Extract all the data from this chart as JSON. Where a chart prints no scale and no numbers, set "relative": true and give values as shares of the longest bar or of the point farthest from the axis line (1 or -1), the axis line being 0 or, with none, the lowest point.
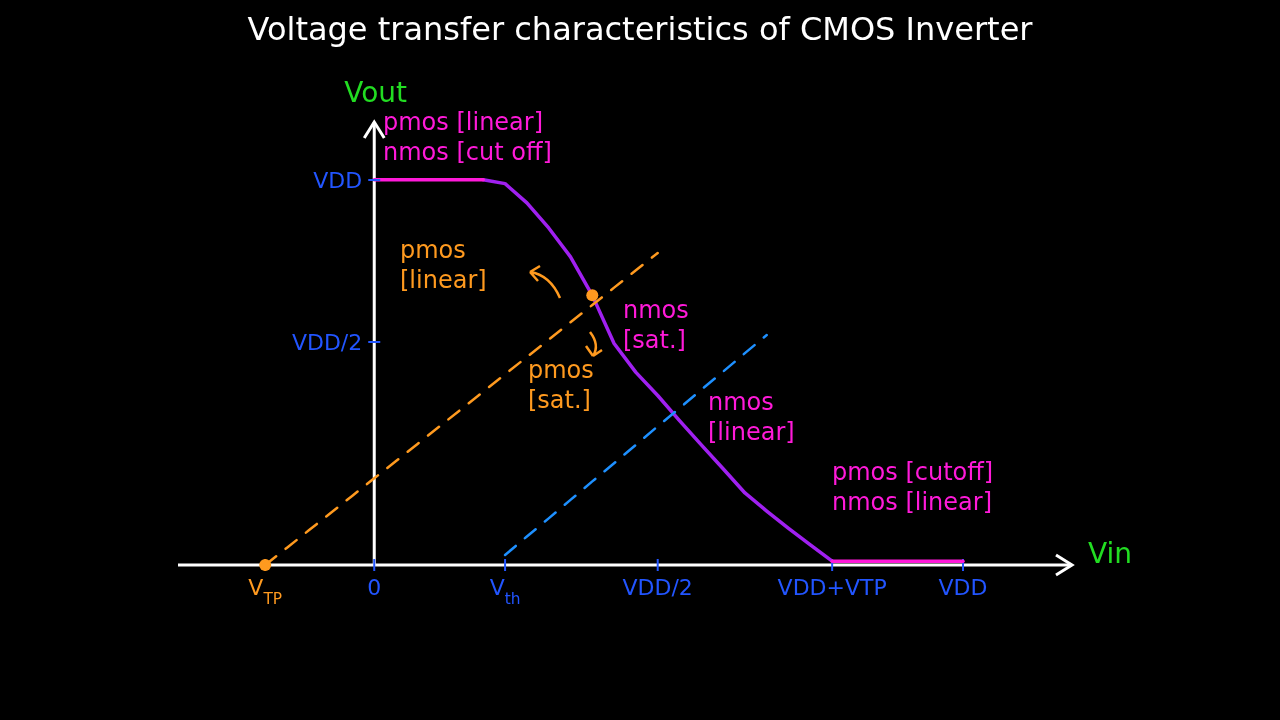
{
  "chart_data": {
    "type": "line",
    "title": "Voltage transfer characteristics of CMOS Inverter",
    "xlabel": "Vin",
    "ylabel": "Vout",
    "relative": true,
    "categories": [
      null,
      null,
      null,
      null,
      "V$_{TP}$",
      null,
      null,
      null,
      null,
      "0",
      null,
      null,
      null,
      null,
      null,
      "V$_{th}$",
      null,
      null,
      null,
      null,
      null,
      null,
      "VDD/2",
      null,
      null,
      null,
      null,
      null,
      null,
      null,
      "VDD+VTP",
      null,
      null,
      null,
      null,
      null,
      "VDD",
      null,
      null,
      null,
      null,
      null
    ],
    "series": [
      {
        "color": "#a020f0",
        "values": [
          null,
          null,
          null,
          null,
          null,
          null,
          null,
          null,
          null,
          null,
          null,
          null,
          null,
          null,
          1.0,
          0.99,
          0.94,
          0.875,
          0.8,
          0.7,
          0.575,
          0.5,
          0.44,
          0.375,
          0.312,
          0.25,
          0.187,
          0.14,
          0.095,
          0.052,
          0.01,
          null,
          null,
          null,
          null,
          null,
          null,
          null,
          null,
          null,
          null,
          null
        ]
      },
      {
        "color": "#ff1ad9",
        "values": [
          null,
          null,
          null,
          null,
          null,
          null,
          null,
          null,
          null,
          1.0,
          1.0,
          1.0,
          1.0,
          1.0,
          1.0,
          null,
          null,
          null,
          null,
          null,
          null,
          null,
          null,
          null,
          null,
          null,
          null,
          null,
          null,
          null,
          null,
          null,
          null,
          null,
          null,
          null,
          null,
          null,
          null,
          null,
          null,
          null
        ]
      },
      {
        "type": "line",
        "color": "#ff1ad9",
        "values": [
          null,
          null,
          null,
          null,
          null,
          null,
          null,
          null,
          null,
          null,
          null,
          null,
          null,
          null,
          null,
          null,
          null,
          null,
          null,
          null,
          null,
          null,
          null,
          null,
          null,
          null,
          null,
          null,
          null,
          null,
          0.01,
          0.01,
          0.01,
          0.01,
          0.01,
          0.01,
          0.01,
          null,
          null,
          null,
          null,
          null
        ]
      },
      {
        "type": "line",
        "color": "#ff9a1f",
        "line_style": "dashed",
        "values": [
          null,
          null,
          null,
          null,
          0,
          0.045,
          0.09,
          0.135,
          0.18,
          0.225,
          0.27,
          0.315,
          0.36,
          0.405,
          0.45,
          0.495,
          0.54,
          0.585,
          0.63,
          0.675,
          0.72,
          0.765,
          0.81,
          null,
          null,
          null,
          null,
          null,
          null,
          null,
          null,
          null,
          null,
          null,
          null,
          null,
          null,
          null,
          null,
          null,
          null,
          null
        ]
      },
      {
        "type": "line",
        "color": "#1e90ff",
        "line_style": "dashed",
        "values": [
          null,
          null,
          null,
          null,
          null,
          null,
          null,
          null,
          null,
          null,
          null,
          null,
          null,
          null,
          null,
          0.026,
          0.074,
          0.121,
          0.169,
          0.217,
          0.264,
          0.312,
          0.36,
          0.407,
          0.455,
          0.502,
          0.55,
          0.597,
          null,
          null,
          null,
          null,
          null,
          null,
          null,
          null,
          null,
          null,
          null,
          null,
          null,
          null
        ]
      },
      {
        "type": "scatter",
        "color": "#ff9a1f",
        "marker": "circle",
        "values": [
          null,
          null,
          null,
          null,
          0,
          null,
          null,
          null,
          null,
          null,
          null,
          null,
          null,
          null,
          null,
          null,
          null,
          null,
          null,
          0.7,
          null,
          null,
          null,
          null,
          null,
          null,
          null,
          null,
          null,
          null,
          null,
          null,
          null,
          null,
          null,
          null,
          null,
          null,
          null,
          null,
          null,
          null
        ]
      }
    ],
    "annotations": [
      "pmos [linear]\nnmos [cut off]",
      "pmos\n[linear]",
      "nmos\n[sat.]",
      "pmos\n[sat.]",
      "nmos\n[linear]",
      "pmos [cutoff]\nnmos [linear]",
      "VDD/2",
      "VDD"
    ]
  }
}
